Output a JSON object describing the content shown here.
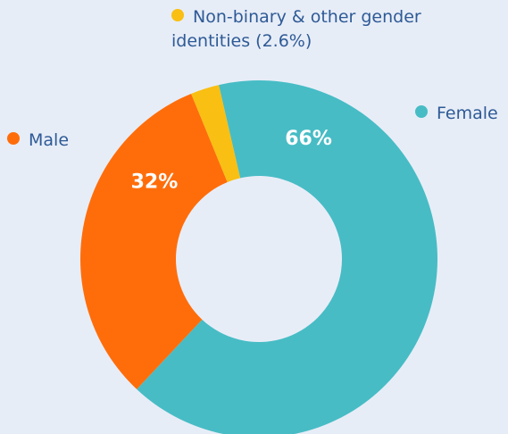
{
  "chart_data": {
    "type": "donut",
    "categories": [
      "Female",
      "Male",
      "Non-binary & other gender identities"
    ],
    "values": [
      66,
      32,
      2.6
    ],
    "value_labels": [
      "66%",
      "32%",
      "(2.6%)"
    ],
    "colors": [
      "#47bcc5",
      "#ff6d0a",
      "#f9bf12"
    ]
  }
}
